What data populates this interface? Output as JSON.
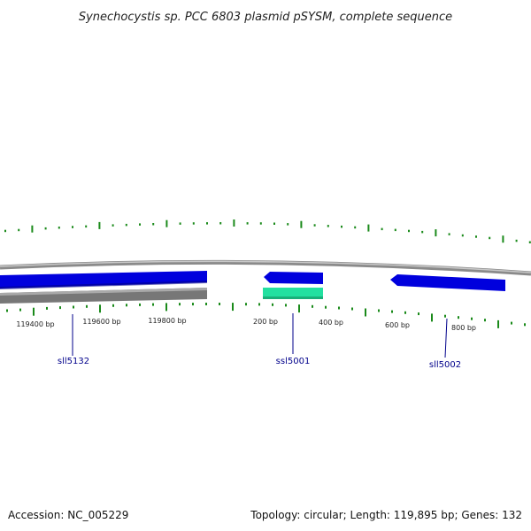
{
  "title": "Synechocystis sp. PCC 6803 plasmid pSYSM, complete sequence",
  "footer": {
    "accession": "Accession: NC_005229",
    "summary": "Topology: circular; Length: 119,895 bp; Genes: 132"
  },
  "map": {
    "colors": {
      "backbone": "#8a8a8a",
      "feature_forward": "#0000dd",
      "feature_reverse_track": "#777777",
      "feature_small": "#22e0a0",
      "ticks": "#1a8a1a",
      "gene_label": "#00008b"
    },
    "tick_labels": [
      "119400 bp",
      "119600 bp",
      "119800 bp",
      "200 bp",
      "400 bp",
      "600 bp",
      "800 bp"
    ],
    "genes": [
      {
        "name": "sll5132",
        "strand": "forward"
      },
      {
        "name": "ssl5001",
        "strand": "reverse"
      },
      {
        "name": "sll5002",
        "strand": "reverse"
      }
    ]
  }
}
